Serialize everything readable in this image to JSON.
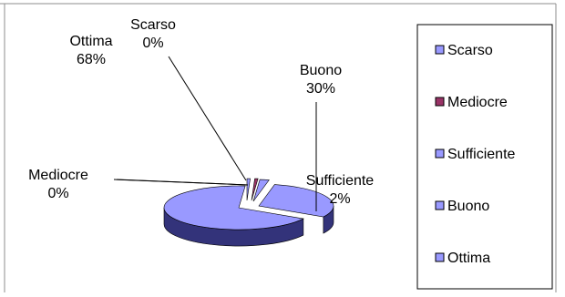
{
  "chart_data": {
    "type": "pie",
    "style": "3d-exploded",
    "categories": [
      "Scarso",
      "Mediocre",
      "Sufficiente",
      "Buono",
      "Ottima"
    ],
    "values": [
      0,
      0,
      2,
      30,
      68
    ],
    "data_labels": [
      "Scarso\n0%",
      "Mediocre\n0%",
      "Sufficiente\n2%",
      "Buono\n30%",
      "Ottima\n68%"
    ],
    "legend_placement": "right",
    "colors": [
      "#9999ff",
      "#993366",
      "#9999ff",
      "#9999ff",
      "#9999ff"
    ],
    "side_color": "#33337a",
    "title": ""
  }
}
